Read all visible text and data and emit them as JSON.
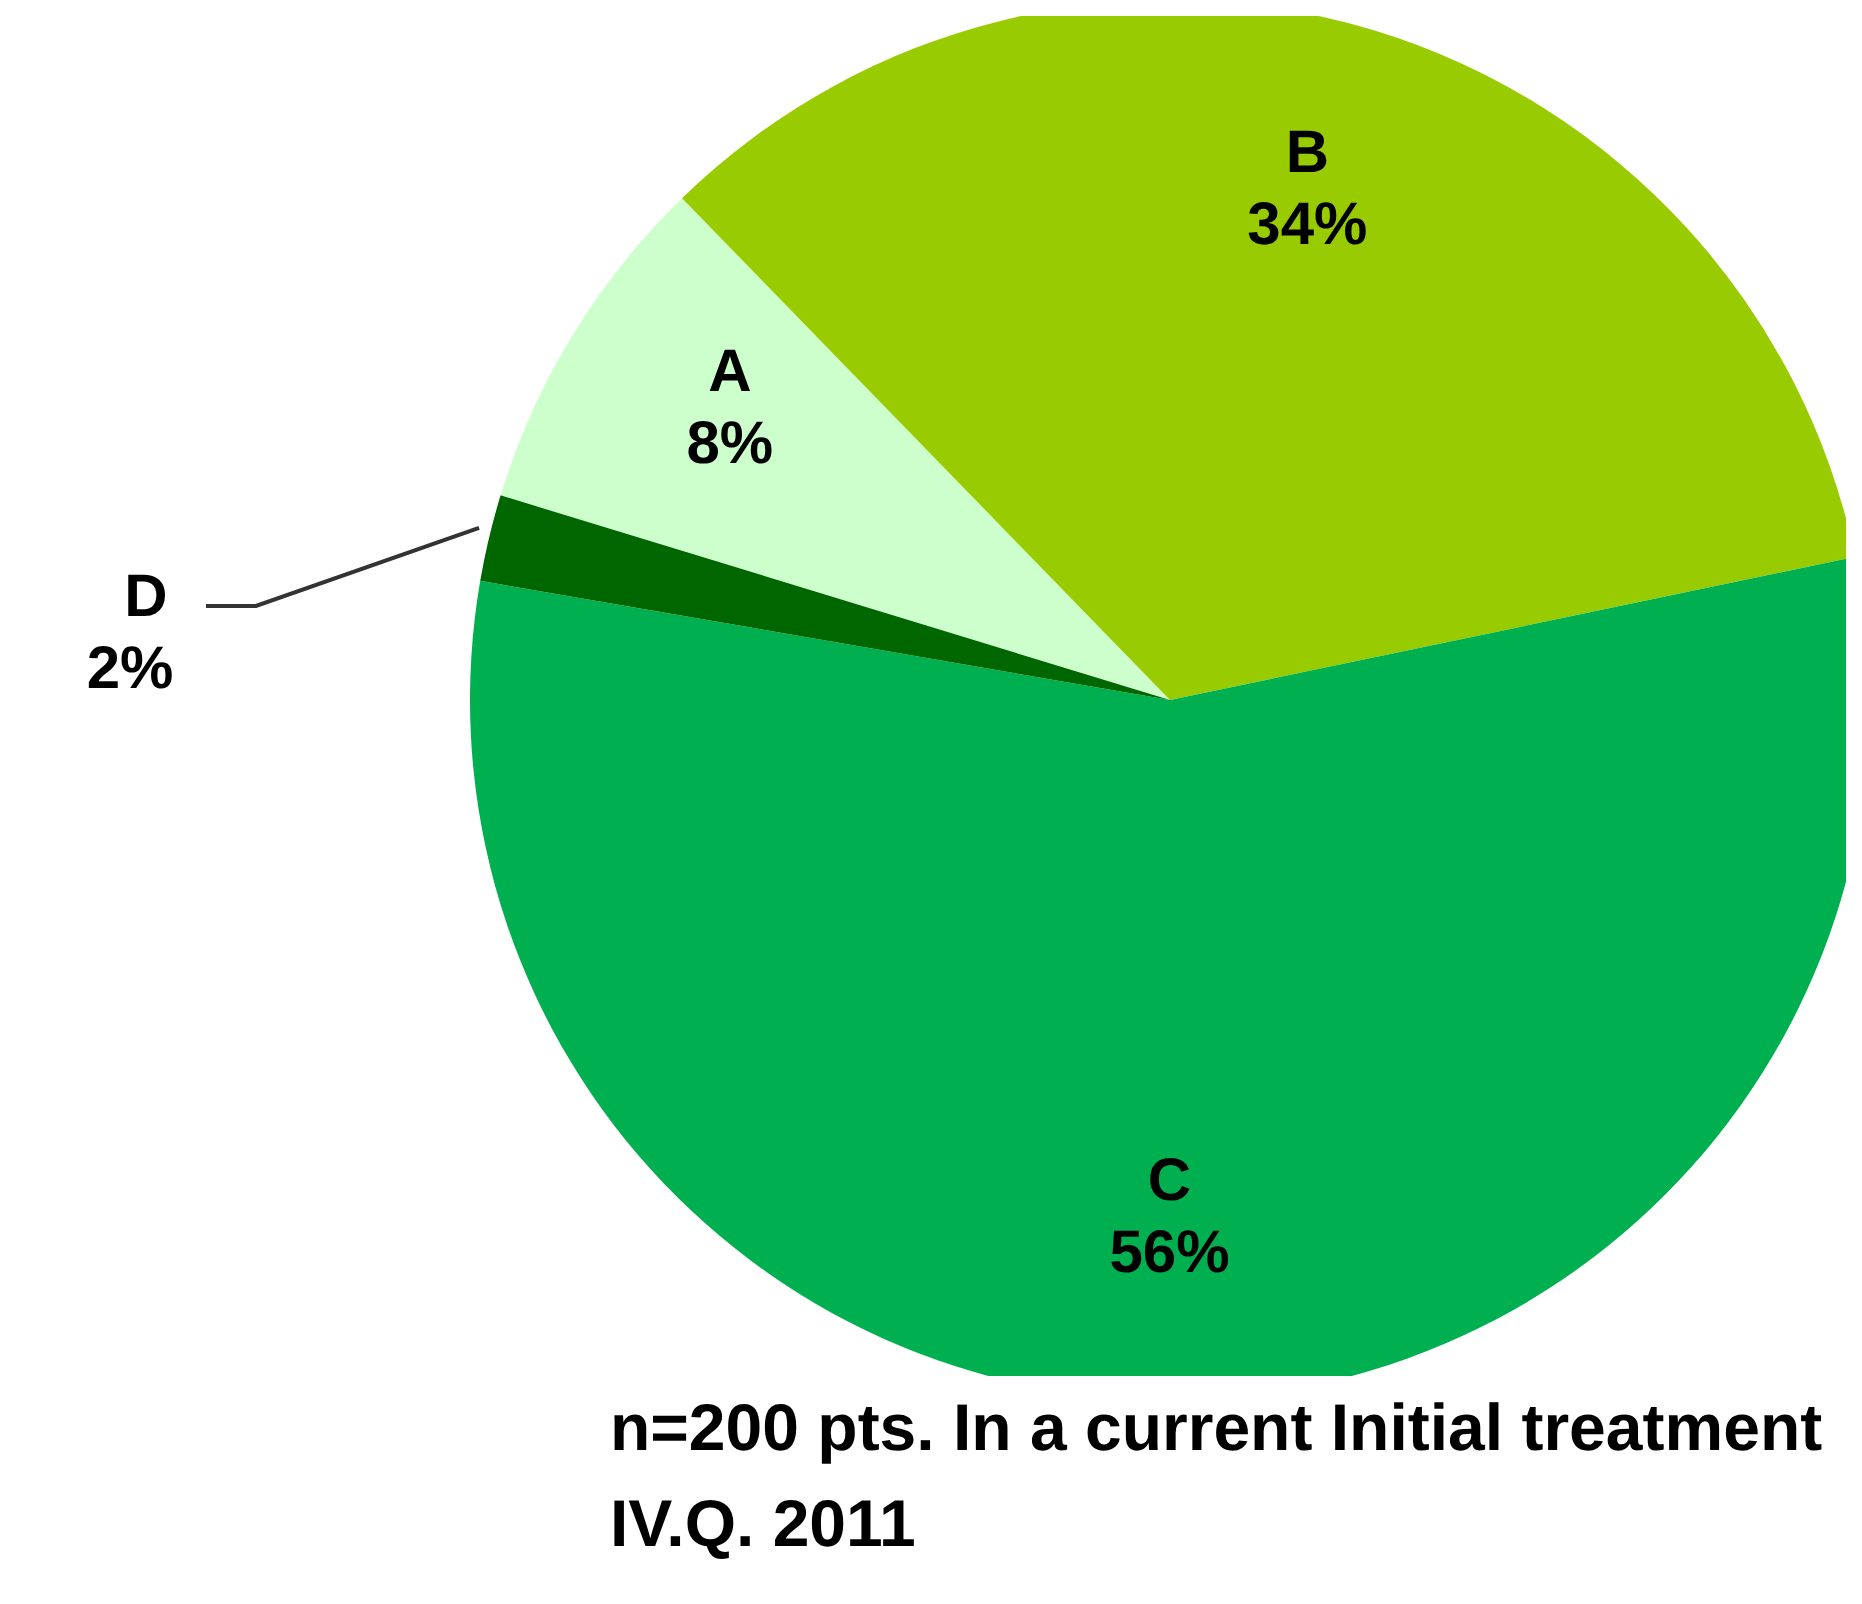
{
  "chart_data": {
    "type": "pie",
    "categories": [
      "A",
      "B",
      "C",
      "D"
    ],
    "values": [
      8,
      34,
      56,
      2
    ],
    "colors": [
      "#ccffcc",
      "#99cc00",
      "#00b050",
      "#006600"
    ],
    "value_labels": [
      "8%",
      "34%",
      "56%",
      "2%"
    ],
    "annotations": [
      "n=200 pts. In a current Initial treatment IV.Q. 2011"
    ],
    "legend": false
  }
}
